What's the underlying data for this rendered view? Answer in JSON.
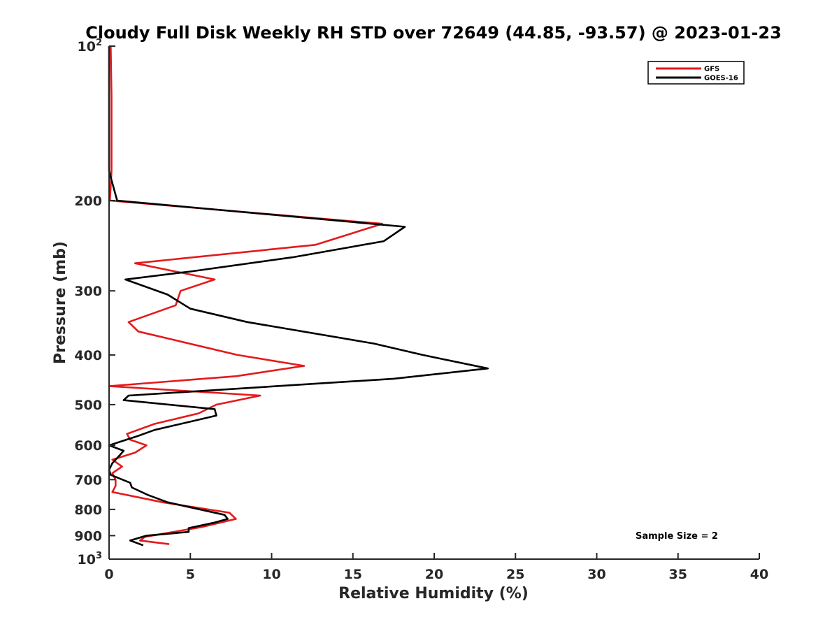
{
  "chart_data": {
    "type": "line",
    "title": "Cloudy Full Disk Weekly RH STD over 72649 (44.85, -93.57) @ 2023-01-23",
    "xlabel": "Relative Humidity (%)",
    "ylabel": "Pressure (mb)",
    "xlim": [
      0,
      40
    ],
    "ylim": [
      100,
      1000
    ],
    "yscale": "log",
    "y_reversed": true,
    "grid": false,
    "legend_position": "top-right",
    "x_ticks": [
      0,
      5,
      10,
      15,
      20,
      25,
      30,
      35,
      40
    ],
    "x_tick_labels": [
      "0",
      "5",
      "10",
      "15",
      "20",
      "25",
      "30",
      "35",
      "40"
    ],
    "y_ticks": [
      200,
      300,
      400,
      500,
      600,
      700,
      800,
      900
    ],
    "y_tick_labels": [
      "200",
      "300",
      "400",
      "500",
      "600",
      "700",
      "800",
      "900"
    ],
    "y_top_label": {
      "base": "10",
      "exp": "2"
    },
    "y_bottom_label": {
      "base": "10",
      "exp": "3"
    },
    "annotation": "Sample Size = 2",
    "series": [
      {
        "name": "GFS",
        "color": "#e41a1c",
        "points": [
          [
            0.1,
            100
          ],
          [
            0.15,
            125
          ],
          [
            0.15,
            150
          ],
          [
            0.15,
            175
          ],
          [
            0.05,
            200
          ],
          [
            16.8,
            222
          ],
          [
            12.7,
            244
          ],
          [
            1.6,
            265
          ],
          [
            6.5,
            285
          ],
          [
            4.4,
            300
          ],
          [
            4.1,
            320
          ],
          [
            1.2,
            345
          ],
          [
            1.8,
            360
          ],
          [
            7.9,
            400
          ],
          [
            12.0,
            420
          ],
          [
            7.8,
            440
          ],
          [
            0.0,
            460
          ],
          [
            9.3,
            480
          ],
          [
            6.6,
            500
          ],
          [
            5.5,
            520
          ],
          [
            2.8,
            545
          ],
          [
            1.1,
            570
          ],
          [
            1.3,
            585
          ],
          [
            2.3,
            600
          ],
          [
            1.6,
            620
          ],
          [
            0.2,
            640
          ],
          [
            0.8,
            660
          ],
          [
            0.2,
            680
          ],
          [
            0.4,
            700
          ],
          [
            0.4,
            720
          ],
          [
            0.2,
            740
          ],
          [
            3.3,
            775
          ],
          [
            7.4,
            812
          ],
          [
            7.8,
            835
          ],
          [
            5.7,
            866
          ],
          [
            2.2,
            905
          ],
          [
            1.9,
            920
          ],
          [
            3.7,
            935
          ]
        ]
      },
      {
        "name": "GOES-16",
        "color": "#000000",
        "points": [
          [
            0.0,
            100
          ],
          [
            0.0,
            125
          ],
          [
            0.0,
            150
          ],
          [
            0.0,
            175
          ],
          [
            0.1,
            180
          ],
          [
            0.5,
            200
          ],
          [
            18.2,
            225
          ],
          [
            16.9,
            240
          ],
          [
            11.3,
            258
          ],
          [
            5.0,
            275
          ],
          [
            1.0,
            285
          ],
          [
            3.6,
            305
          ],
          [
            5.0,
            325
          ],
          [
            8.5,
            345
          ],
          [
            16.3,
            380
          ],
          [
            19.3,
            400
          ],
          [
            23.3,
            425
          ],
          [
            17.5,
            445
          ],
          [
            1.2,
            480
          ],
          [
            0.9,
            490
          ],
          [
            6.5,
            510
          ],
          [
            6.6,
            525
          ],
          [
            2.8,
            560
          ],
          [
            1.8,
            575
          ],
          [
            0.0,
            600
          ],
          [
            0.9,
            615
          ],
          [
            0.7,
            625
          ],
          [
            0.2,
            650
          ],
          [
            0.0,
            670
          ],
          [
            0.1,
            685
          ],
          [
            1.3,
            710
          ],
          [
            1.4,
            725
          ],
          [
            2.4,
            750
          ],
          [
            3.6,
            775
          ],
          [
            7.1,
            820
          ],
          [
            7.3,
            835
          ],
          [
            6.4,
            850
          ],
          [
            4.9,
            870
          ],
          [
            4.9,
            885
          ],
          [
            2.3,
            900
          ],
          [
            1.3,
            920
          ],
          [
            2.1,
            940
          ]
        ]
      }
    ]
  }
}
